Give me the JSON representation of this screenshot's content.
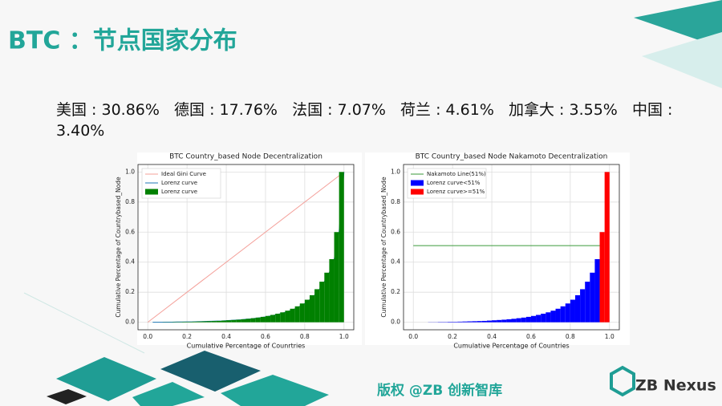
{
  "title": "BTC ：节点国家分布",
  "stats": "美国 : 30.86%   德国 : 17.76%   法国 : 7.07%   荷兰 : 4.61%   加拿大 : 3.55%   中国 : 3.40%",
  "footer": "版权 @ZB 创新智库",
  "logo": "ZB Nexus",
  "chart_data": [
    {
      "type": "bar",
      "title": "BTC  Country_based Node Decentralization",
      "x_label": "Cumulative Percentage of Counrtries",
      "y_label": "Cumulative Percentage of Countrybased_Node",
      "xlim": [
        -0.05,
        1.05
      ],
      "ylim": [
        -0.05,
        1.05
      ],
      "grid": true,
      "legend": "upper left",
      "xticks": [
        {
          "value": 0,
          "label": "0.0"
        },
        {
          "value": 0.2,
          "label": "0.2"
        },
        {
          "value": 0.4,
          "label": "0.4"
        },
        {
          "value": 0.6,
          "label": "0.6"
        },
        {
          "value": 0.8,
          "label": "0.8"
        },
        {
          "value": 1,
          "label": "1.0"
        }
      ],
      "yticks": [
        {
          "value": 0,
          "label": "0.0"
        },
        {
          "value": 0.2,
          "label": "0.2"
        },
        {
          "value": 0.4,
          "label": "0.4"
        },
        {
          "value": 0.6,
          "label": "0.6"
        },
        {
          "value": 0.8,
          "label": "0.8"
        },
        {
          "value": 1,
          "label": "1.0"
        }
      ],
      "x": [
        0.025,
        0.05,
        0.075,
        0.1,
        0.125,
        0.15,
        0.175,
        0.2,
        0.225,
        0.25,
        0.275,
        0.3,
        0.325,
        0.35,
        0.375,
        0.4,
        0.425,
        0.45,
        0.475,
        0.5,
        0.525,
        0.55,
        0.575,
        0.6,
        0.625,
        0.65,
        0.675,
        0.7,
        0.725,
        0.75,
        0.775,
        0.8,
        0.825,
        0.85,
        0.875,
        0.9,
        0.925,
        0.95,
        0.975,
        1.0
      ],
      "series": [
        {
          "name": "Ideal Gini Curve",
          "type": "line",
          "color": "#f4a09a",
          "x": [
            0,
            1
          ],
          "values": [
            0,
            1
          ]
        },
        {
          "name": "Lorenz curve",
          "type": "line",
          "color": "#1f77b4",
          "values": [
            0,
            0,
            0,
            0.001,
            0.001,
            0.002,
            0.002,
            0.003,
            0.003,
            0.004,
            0.005,
            0.006,
            0.007,
            0.008,
            0.009,
            0.011,
            0.013,
            0.015,
            0.017,
            0.02,
            0.023,
            0.027,
            0.031,
            0.036,
            0.042,
            0.049,
            0.057,
            0.066,
            0.077,
            0.09,
            0.106,
            0.125,
            0.15,
            0.18,
            0.22,
            0.27,
            0.33,
            0.42,
            0.6,
            1.0
          ]
        },
        {
          "name": "Lorenz curve",
          "type": "bar",
          "color": "#008000",
          "values": [
            0,
            0,
            0,
            0.001,
            0.001,
            0.002,
            0.002,
            0.003,
            0.003,
            0.004,
            0.005,
            0.006,
            0.007,
            0.008,
            0.009,
            0.011,
            0.013,
            0.015,
            0.017,
            0.02,
            0.023,
            0.027,
            0.031,
            0.036,
            0.042,
            0.049,
            0.057,
            0.066,
            0.077,
            0.09,
            0.106,
            0.125,
            0.15,
            0.18,
            0.22,
            0.27,
            0.33,
            0.42,
            0.6,
            1.0
          ]
        }
      ]
    },
    {
      "type": "bar",
      "title": "BTC   Country_based Node  Nakamoto Decentralization",
      "x_label": "Cumulative Percentage of Countries",
      "y_label": "Cumulative Percentage of Countrybased_Node",
      "xlim": [
        -0.05,
        1.05
      ],
      "ylim": [
        -0.05,
        1.05
      ],
      "grid": true,
      "legend": "upper left",
      "xticks": [
        {
          "value": 0,
          "label": "0.0"
        },
        {
          "value": 0.2,
          "label": "0.2"
        },
        {
          "value": 0.4,
          "label": "0.4"
        },
        {
          "value": 0.6,
          "label": "0.6"
        },
        {
          "value": 0.8,
          "label": "0.8"
        },
        {
          "value": 1,
          "label": "1.0"
        }
      ],
      "yticks": [
        {
          "value": 0,
          "label": "0.0"
        },
        {
          "value": 0.2,
          "label": "0.2"
        },
        {
          "value": 0.4,
          "label": "0.4"
        },
        {
          "value": 0.6,
          "label": "0.6"
        },
        {
          "value": 0.8,
          "label": "0.8"
        },
        {
          "value": 1,
          "label": "1.0"
        }
      ],
      "x": [
        0.025,
        0.05,
        0.075,
        0.1,
        0.125,
        0.15,
        0.175,
        0.2,
        0.225,
        0.25,
        0.275,
        0.3,
        0.325,
        0.35,
        0.375,
        0.4,
        0.425,
        0.45,
        0.475,
        0.5,
        0.525,
        0.55,
        0.575,
        0.6,
        0.625,
        0.65,
        0.675,
        0.7,
        0.725,
        0.75,
        0.775,
        0.8,
        0.825,
        0.85,
        0.875,
        0.9,
        0.925,
        0.95,
        0.975,
        1.0
      ],
      "series": [
        {
          "name": "Nakamoto Line(51%)",
          "type": "line",
          "color": "#3a9a3a",
          "x": [
            0,
            0.97
          ],
          "values": [
            0.51,
            0.51
          ]
        },
        {
          "name": "Lorenz curve<51%",
          "type": "bar",
          "color": "#0000ff",
          "values": [
            0,
            0,
            0,
            0.001,
            0.001,
            0.002,
            0.002,
            0.003,
            0.003,
            0.004,
            0.005,
            0.006,
            0.007,
            0.008,
            0.009,
            0.011,
            0.013,
            0.015,
            0.017,
            0.02,
            0.023,
            0.027,
            0.031,
            0.036,
            0.042,
            0.049,
            0.057,
            0.066,
            0.077,
            0.09,
            0.106,
            0.125,
            0.15,
            0.18,
            0.22,
            0.27,
            0.33,
            0.42,
            null,
            null
          ]
        },
        {
          "name": "Lorenz curve>=51%",
          "type": "bar",
          "color": "#ff0000",
          "values": [
            null,
            null,
            null,
            null,
            null,
            null,
            null,
            null,
            null,
            null,
            null,
            null,
            null,
            null,
            null,
            null,
            null,
            null,
            null,
            null,
            null,
            null,
            null,
            null,
            null,
            null,
            null,
            null,
            null,
            null,
            null,
            null,
            null,
            null,
            null,
            null,
            null,
            null,
            0.6,
            1.0
          ]
        }
      ]
    }
  ]
}
